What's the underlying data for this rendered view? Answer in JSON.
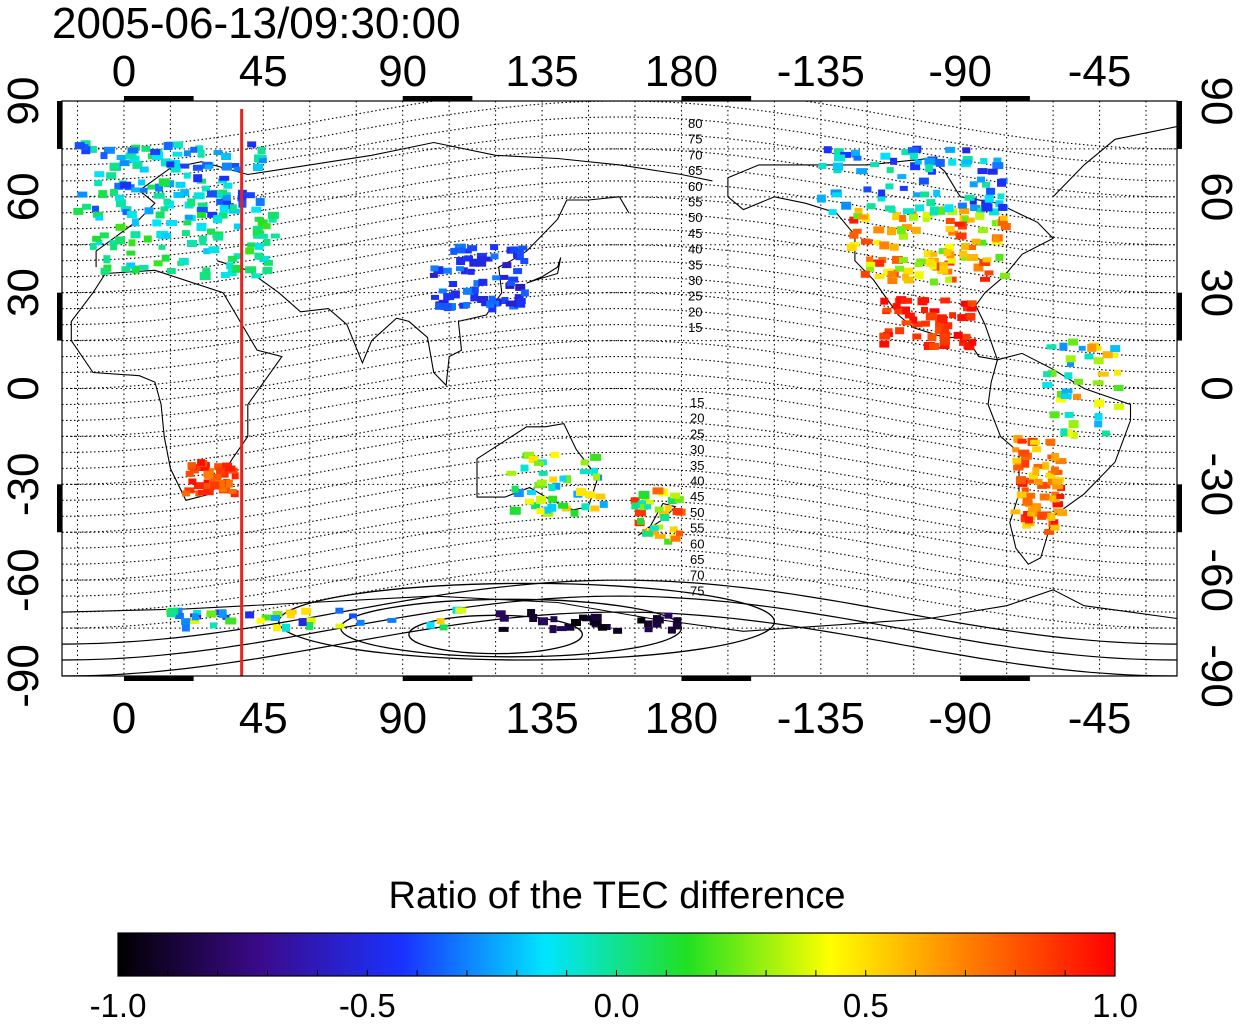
{
  "chart_data": {
    "type": "heatmap",
    "title": "2005-06-13/09:30:00",
    "x_ticks_top": [
      "0",
      "45",
      "90",
      "135",
      "180",
      "-135",
      "-90",
      "-45"
    ],
    "x_ticks_bottom": [
      "0",
      "45",
      "90",
      "135",
      "180",
      "-135",
      "-90",
      "-45"
    ],
    "y_ticks_left": [
      "90",
      "60",
      "30",
      "0",
      "-30",
      "-60",
      "-90"
    ],
    "y_ticks_right": [
      "90",
      "60",
      "30",
      "0",
      "-30",
      "-60",
      "-90"
    ],
    "x_tick_values": [
      0,
      45,
      90,
      135,
      180,
      225,
      270,
      315
    ],
    "y_tick_values": [
      90,
      60,
      30,
      0,
      -30,
      -60,
      -90
    ],
    "xlim": [
      -20,
      340
    ],
    "ylim": [
      -90,
      90
    ],
    "grid": true,
    "marker_meridian_lon": 38,
    "marker_meridian_color": "#e8231f",
    "contour_labels_north": [
      "80",
      "75",
      "70",
      "65",
      "60",
      "55",
      "50",
      "45",
      "40",
      "35",
      "30",
      "25",
      "20",
      "15"
    ],
    "contour_labels_south": [
      "15",
      "20",
      "25",
      "30",
      "35",
      "40",
      "45",
      "50",
      "55",
      "60",
      "65",
      "70",
      "75"
    ],
    "clusters": [
      {
        "lon": 15,
        "lat": 65,
        "dlon": 30,
        "dlat": 12,
        "n": 120,
        "vmin": -0.45,
        "vmax": 0.1
      },
      {
        "lon": 20,
        "lat": 45,
        "dlon": 30,
        "dlat": 10,
        "n": 80,
        "vmin": -0.2,
        "vmax": 0.2
      },
      {
        "lon": 115,
        "lat": 35,
        "dlon": 15,
        "dlat": 10,
        "n": 70,
        "vmin": -0.6,
        "vmax": -0.3
      },
      {
        "lon": 28,
        "lat": -28,
        "dlon": 8,
        "dlat": 5,
        "n": 45,
        "vmin": 0.7,
        "vmax": 1.0
      },
      {
        "lon": 260,
        "lat": 45,
        "dlon": 25,
        "dlat": 12,
        "n": 110,
        "vmin": 0.2,
        "vmax": 0.95
      },
      {
        "lon": 255,
        "lat": 65,
        "dlon": 30,
        "dlat": 10,
        "n": 80,
        "vmin": -0.5,
        "vmax": 0.0
      },
      {
        "lon": 260,
        "lat": 20,
        "dlon": 15,
        "dlat": 8,
        "n": 55,
        "vmin": 0.8,
        "vmax": 1.0
      },
      {
        "lon": 295,
        "lat": -30,
        "dlon": 8,
        "dlat": 15,
        "n": 70,
        "vmin": 0.5,
        "vmax": 1.0
      },
      {
        "lon": 140,
        "lat": -30,
        "dlon": 15,
        "dlat": 10,
        "n": 45,
        "vmin": -0.3,
        "vmax": 0.6
      },
      {
        "lon": 172,
        "lat": -40,
        "dlon": 8,
        "dlat": 8,
        "n": 35,
        "vmin": -0.1,
        "vmax": 0.9
      },
      {
        "lon": 150,
        "lat": -73,
        "dlon": 30,
        "dlat": 3,
        "n": 30,
        "vmin": -1.0,
        "vmax": -0.8
      },
      {
        "lon": 60,
        "lat": -72,
        "dlon": 50,
        "dlat": 3,
        "n": 40,
        "vmin": -0.5,
        "vmax": 0.6
      },
      {
        "lon": 310,
        "lat": 0,
        "dlon": 12,
        "dlat": 15,
        "n": 40,
        "vmin": -0.3,
        "vmax": 0.7
      }
    ]
  },
  "colorbar": {
    "title": "Ratio of the TEC difference",
    "tick_labels": [
      "-1.0",
      "-0.5",
      "0.0",
      "0.5",
      "1.0"
    ],
    "tick_values": [
      -1.0,
      -0.5,
      0.0,
      0.5,
      1.0
    ],
    "color_stops": [
      "#000000",
      "#3b0a8a",
      "#1a32ff",
      "#00e5ff",
      "#21e021",
      "#ffff00",
      "#ff7a00",
      "#ff0000"
    ]
  }
}
